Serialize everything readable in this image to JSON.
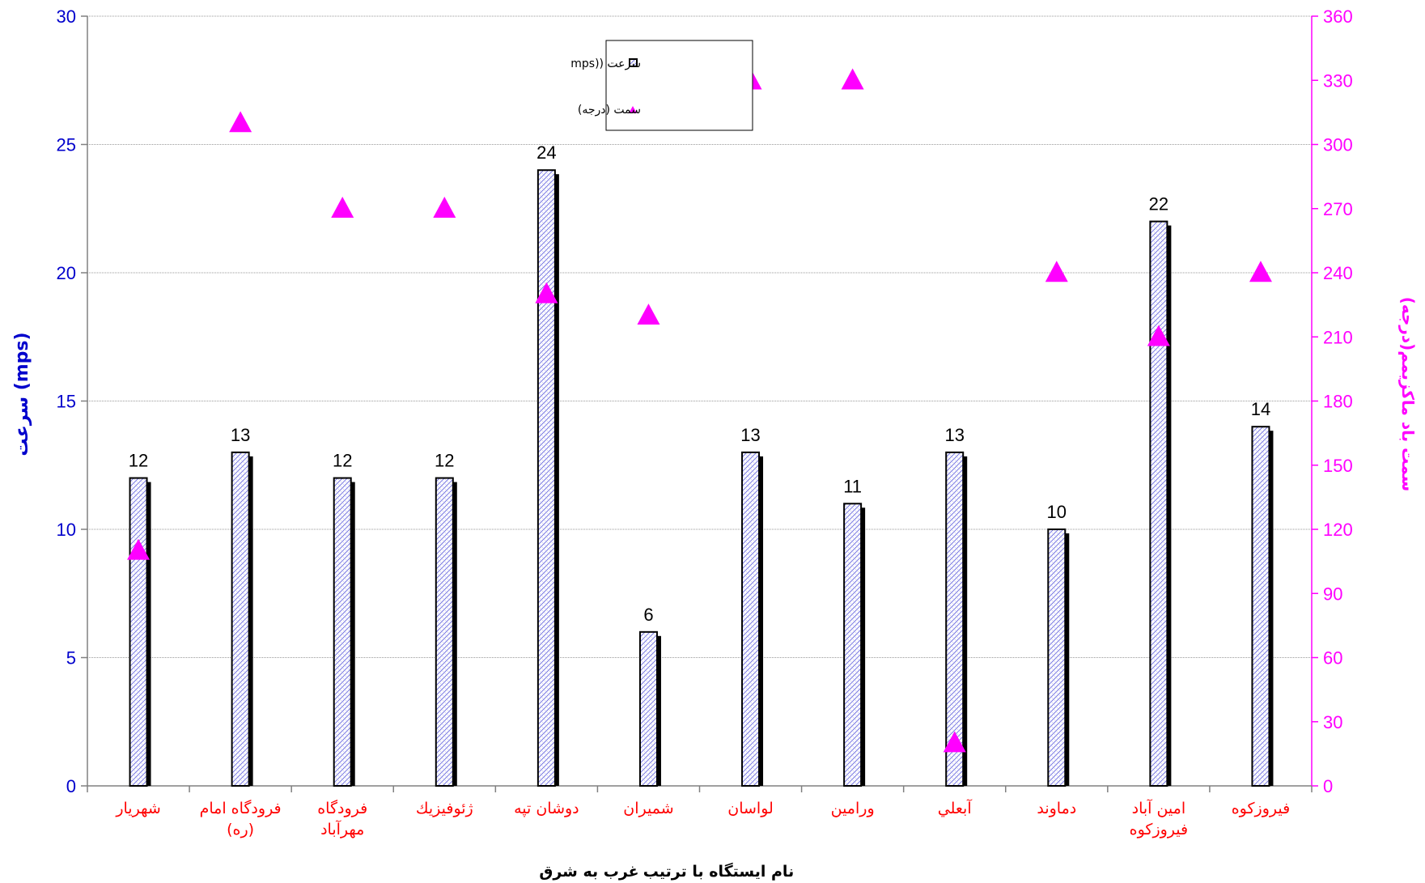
{
  "chart_data": {
    "type": "bar",
    "categories": [
      [
        "شهريار"
      ],
      [
        "فرودگاه امام",
        "(ره)"
      ],
      [
        "فرودگاه",
        "مهرآباد"
      ],
      [
        "ژئوفيزيك"
      ],
      [
        "دوشان تپه"
      ],
      [
        "شميران"
      ],
      [
        "لواسان"
      ],
      [
        "ورامين"
      ],
      [
        "آبعلي"
      ],
      [
        "دماوند"
      ],
      [
        "امين آباد",
        "فيروزكوه"
      ],
      [
        "فيروزكوه"
      ]
    ],
    "series": [
      {
        "name": "سرعت  ((mps",
        "type": "bar",
        "axis": "left",
        "values": [
          12,
          13,
          12,
          12,
          24,
          6,
          13,
          11,
          13,
          10,
          22,
          14
        ]
      },
      {
        "name": "سمت  (درجه)",
        "type": "scatter",
        "axis": "right",
        "values": [
          110,
          310,
          270,
          270,
          230,
          220,
          330,
          330,
          20,
          240,
          210,
          240
        ]
      }
    ],
    "ylabel": "سرعت (mps)",
    "ylabel_right": "سمت باد ماكزيمم(درجه)",
    "xlabel_parts": [
      "نام ايستگاه با ترتيب",
      "غرب به شرق"
    ],
    "ylim": [
      0,
      30
    ],
    "yticks": [
      0,
      5,
      10,
      15,
      20,
      25,
      30
    ],
    "ylim_right": [
      0,
      360
    ],
    "yticks_right": [
      0,
      30,
      60,
      90,
      120,
      150,
      180,
      210,
      240,
      270,
      300,
      330,
      360
    ],
    "grid": true,
    "legend_position": "top-center",
    "colors": {
      "left_axis": "#0000cc",
      "right_axis": "#ff00ff",
      "categories": "#ff0000",
      "bar_pattern": "#6a6ae0",
      "marker": "#ff00ff"
    }
  }
}
